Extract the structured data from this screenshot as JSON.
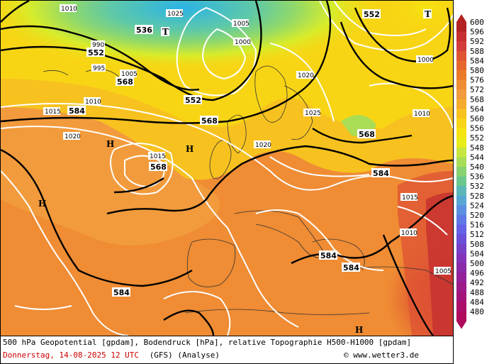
{
  "legend": {
    "values": [
      "600",
      "596",
      "592",
      "588",
      "584",
      "580",
      "576",
      "572",
      "568",
      "564",
      "560",
      "556",
      "552",
      "548",
      "544",
      "540",
      "536",
      "532",
      "528",
      "524",
      "520",
      "516",
      "512",
      "508",
      "504",
      "500",
      "496",
      "492",
      "488",
      "484",
      "480"
    ],
    "colors": [
      "#b22222",
      "#c62f2f",
      "#d43c3c",
      "#de5533",
      "#e6672e",
      "#ea7a2a",
      "#ef8c34",
      "#f29b3c",
      "#f5ab2e",
      "#f7c21f",
      "#f8d514",
      "#f5e40f",
      "#e8ec18",
      "#c8e640",
      "#a8dd55",
      "#88d270",
      "#6ac78d",
      "#5ab8b8",
      "#57a6d4",
      "#5b8fe0",
      "#5f78e6",
      "#6462e6",
      "#6a4fd8",
      "#7640c8",
      "#8233b8",
      "#8a2aa8",
      "#942298",
      "#9c1b88",
      "#a41478",
      "#ab0f6a",
      "#b00a5c"
    ]
  },
  "footer": {
    "line1": "500 hPa Geopotential [gpdam], Bodendruck [hPa], relative Topographie H500-H1000 [gpdam]",
    "date": "Donnerstag, 14-08-2025  12 UTC",
    "model": "(GFS)  (Analyse)",
    "copyright": "© www.wetter3.de"
  },
  "map": {
    "geopotential_labels": [
      "536",
      "552",
      "552",
      "552",
      "568",
      "568",
      "568",
      "568",
      "584",
      "584",
      "584",
      "584",
      "584"
    ],
    "pressure_labels": [
      "1010",
      "1005",
      "1000",
      "995",
      "990",
      "1025",
      "1020",
      "1015",
      "1010",
      "1005",
      "1000",
      "1020",
      "1015",
      "1010",
      "1025",
      "1020",
      "1015",
      "1010",
      "1005"
    ],
    "centers": [
      {
        "type": "T"
      },
      {
        "type": "T"
      },
      {
        "type": "H"
      },
      {
        "type": "H"
      },
      {
        "type": "H"
      },
      {
        "type": "H"
      }
    ]
  }
}
